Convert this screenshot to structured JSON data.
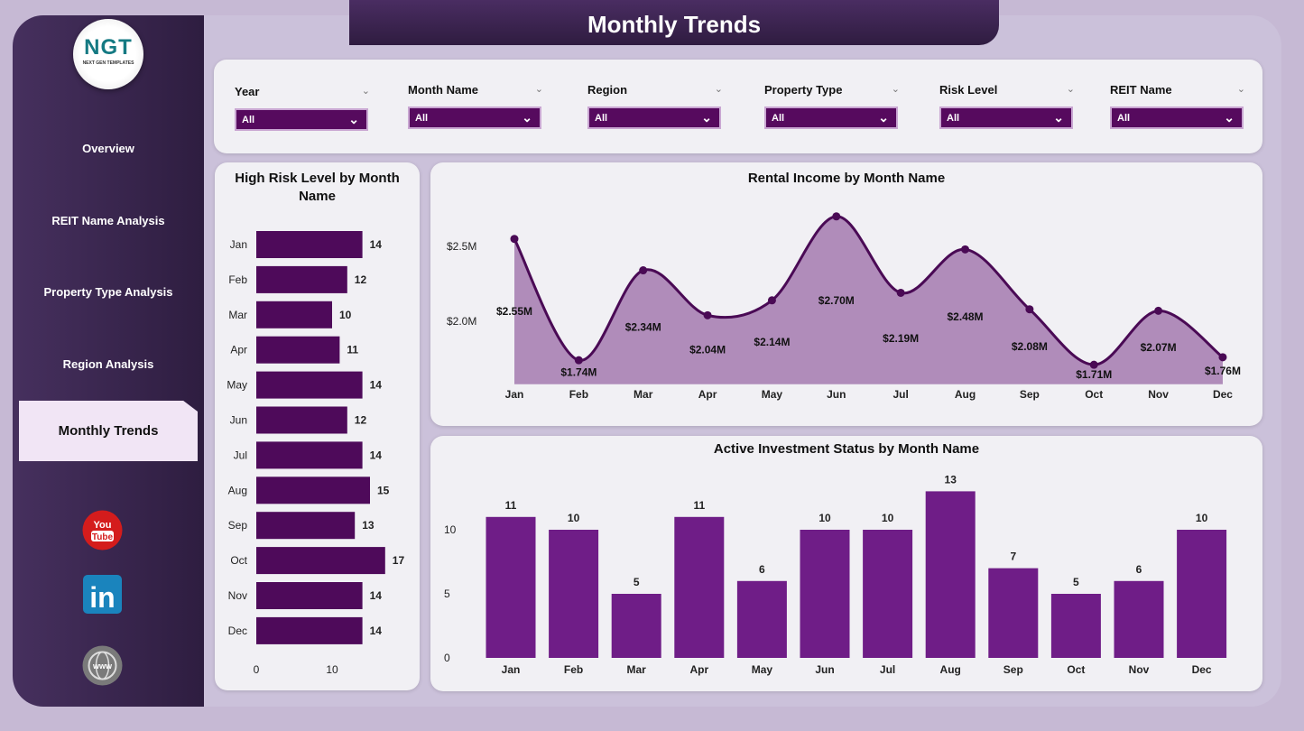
{
  "header": {
    "title": "Monthly Trends"
  },
  "logo": {
    "text": "NGT",
    "subtext": "NEXT GEN TEMPLATES"
  },
  "sidebar": {
    "items": [
      {
        "label": "Overview"
      },
      {
        "label": "REIT Name Analysis"
      },
      {
        "label": "Property Type Analysis"
      },
      {
        "label": "Region Analysis"
      },
      {
        "label": "Monthly Trends",
        "active": true
      }
    ],
    "social": [
      "youtube-icon",
      "linkedin-icon",
      "globe-www-icon"
    ]
  },
  "filters": [
    {
      "label": "Year",
      "value": "All"
    },
    {
      "label": "Month Name",
      "value": "All"
    },
    {
      "label": "Region",
      "value": "All"
    },
    {
      "label": "Property Type",
      "value": "All"
    },
    {
      "label": "Risk Level",
      "value": "All"
    },
    {
      "label": "REIT Name",
      "value": "All"
    }
  ],
  "colors": {
    "accent": "#560a5e",
    "bar_left": "#4e0a5a",
    "bar_bottom": "#6f1d87",
    "area": "#b08cba",
    "line": "#4a0a55"
  },
  "chart_data": [
    {
      "type": "bar",
      "orientation": "horizontal",
      "title": "High Risk Level by Month Name",
      "categories": [
        "Jan",
        "Feb",
        "Mar",
        "Apr",
        "May",
        "Jun",
        "Jul",
        "Aug",
        "Sep",
        "Oct",
        "Nov",
        "Dec"
      ],
      "values": [
        14,
        12,
        10,
        11,
        14,
        12,
        14,
        15,
        13,
        17,
        14,
        14
      ],
      "xticks": [
        "0",
        "10"
      ],
      "xlim": [
        0,
        18
      ]
    },
    {
      "type": "area",
      "title": "Rental Income by Month Name",
      "categories": [
        "Jan",
        "Feb",
        "Mar",
        "Apr",
        "May",
        "Jun",
        "Jul",
        "Aug",
        "Sep",
        "Oct",
        "Nov",
        "Dec"
      ],
      "values": [
        2.55,
        1.74,
        2.34,
        2.04,
        2.14,
        2.7,
        2.19,
        2.48,
        2.08,
        1.71,
        2.07,
        1.76
      ],
      "labels": [
        "$2.55M",
        "$1.74M",
        "$2.34M",
        "$2.04M",
        "$2.14M",
        "$2.70M",
        "$2.19M",
        "$2.48M",
        "$2.08M",
        "$1.71M",
        "$2.07M",
        "$1.76M"
      ],
      "yticks": [
        {
          "v": 2.0,
          "label": "$2.0M"
        },
        {
          "v": 2.5,
          "label": "$2.5M"
        }
      ],
      "ylim": [
        1.58,
        2.8
      ],
      "unit": "$M"
    },
    {
      "type": "bar",
      "title": "Active Investment Status by Month Name",
      "categories": [
        "Jan",
        "Feb",
        "Mar",
        "Apr",
        "May",
        "Jun",
        "Jul",
        "Aug",
        "Sep",
        "Oct",
        "Nov",
        "Dec"
      ],
      "values": [
        11,
        10,
        5,
        11,
        6,
        10,
        10,
        13,
        7,
        5,
        6,
        10
      ],
      "yticks": [
        {
          "v": 0,
          "label": "0"
        },
        {
          "v": 5,
          "label": "5"
        },
        {
          "v": 10,
          "label": "10"
        }
      ],
      "ylim": [
        0,
        14.7
      ]
    }
  ]
}
